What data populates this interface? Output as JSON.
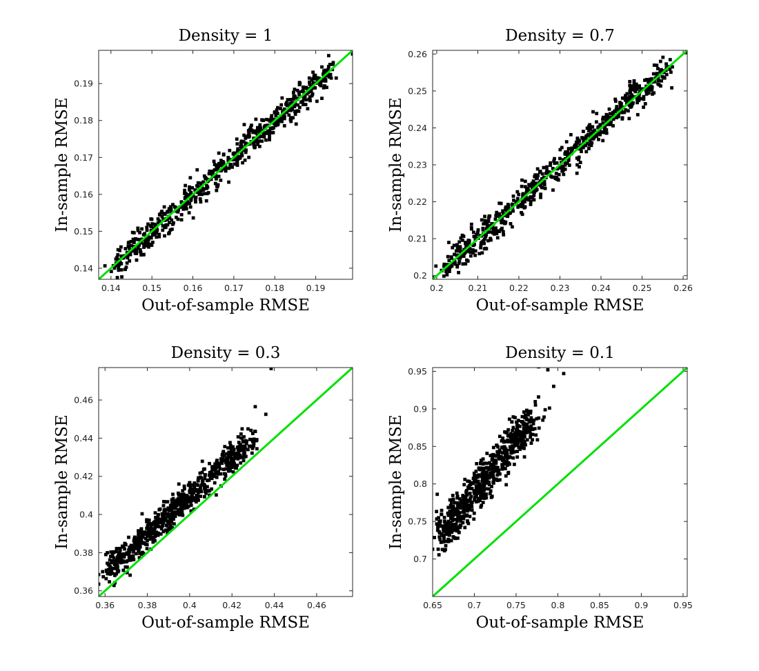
{
  "figure": {
    "identity_color": "#00e000",
    "point_color": "#000000"
  },
  "chart_data": [
    {
      "type": "scatter",
      "title": "Density = 1",
      "xlabel": "Out-of-sample RMSE",
      "ylabel": "In-sample RMSE",
      "xlim": [
        0.137,
        0.199
      ],
      "ylim": [
        0.137,
        0.199
      ],
      "xticks": [
        0.14,
        0.15,
        0.16,
        0.17,
        0.18,
        0.19
      ],
      "yticks": [
        0.14,
        0.15,
        0.16,
        0.17,
        0.18,
        0.19
      ],
      "tick_labels": [
        "0.14",
        "0.15",
        "0.16",
        "0.17",
        "0.18",
        "0.19"
      ],
      "reference_line": "y = x",
      "cloud": {
        "x_start": 0.138,
        "x_end": 0.196,
        "slope": 1.0,
        "offset": 0.0,
        "spread": 0.0018,
        "count": 650
      },
      "outliers": [
        [
          0.199,
          0.198
        ],
        [
          0.1915,
          0.1945
        ],
        [
          0.195,
          0.1915
        ],
        [
          0.1915,
          0.186
        ]
      ]
    },
    {
      "type": "scatter",
      "title": "Density = 0.7",
      "xlabel": "Out-of-sample RMSE",
      "ylabel": "In-sample RMSE",
      "xlim": [
        0.199,
        0.261
      ],
      "ylim": [
        0.199,
        0.261
      ],
      "xticks": [
        0.2,
        0.21,
        0.22,
        0.23,
        0.24,
        0.25,
        0.26
      ],
      "yticks": [
        0.2,
        0.21,
        0.22,
        0.23,
        0.24,
        0.25,
        0.26
      ],
      "tick_labels": [
        "0.2",
        "0.21",
        "0.22",
        "0.23",
        "0.24",
        "0.25",
        "0.26"
      ],
      "reference_line": "y = x",
      "cloud": {
        "x_start": 0.2,
        "x_end": 0.258,
        "slope": 1.0,
        "offset": 0.0,
        "spread": 0.0019,
        "count": 650
      },
      "outliers": [
        [
          0.261,
          0.2605
        ],
        [
          0.2545,
          0.258
        ],
        [
          0.2555,
          0.2535
        ]
      ]
    },
    {
      "type": "scatter",
      "title": "Density = 0.3",
      "xlabel": "Out-of-sample RMSE",
      "ylabel": "In-sample RMSE",
      "xlim": [
        0.357,
        0.477
      ],
      "ylim": [
        0.357,
        0.477
      ],
      "xticks": [
        0.36,
        0.38,
        0.4,
        0.42,
        0.44,
        0.46
      ],
      "yticks": [
        0.36,
        0.38,
        0.4,
        0.42,
        0.44,
        0.46
      ],
      "tick_labels": [
        "0.36",
        "0.38",
        "0.4",
        "0.42",
        "0.44",
        "0.46"
      ],
      "reference_line": "y = x",
      "cloud": {
        "x_start": 0.359,
        "x_end": 0.432,
        "slope": 1.0,
        "offset": 0.0095,
        "spread": 0.0035,
        "count": 700
      },
      "outliers": [
        [
          0.4385,
          0.4765
        ],
        [
          0.431,
          0.4565
        ],
        [
          0.436,
          0.4525
        ],
        [
          0.357,
          0.3635
        ],
        [
          0.357,
          0.3685
        ]
      ]
    },
    {
      "type": "scatter",
      "title": "Density = 0.1",
      "xlabel": "Out-of-sample RMSE",
      "ylabel": "In-sample RMSE",
      "xlim": [
        0.65,
        0.955
      ],
      "ylim": [
        0.65,
        0.955
      ],
      "xticks": [
        0.65,
        0.7,
        0.75,
        0.8,
        0.85,
        0.9,
        0.95
      ],
      "yticks": [
        0.7,
        0.75,
        0.8,
        0.85,
        0.9,
        0.95
      ],
      "tick_labels_x": [
        "0.65",
        "0.7",
        "0.75",
        "0.8",
        "0.85",
        "0.9",
        "0.95"
      ],
      "tick_labels_y": [
        "0.7",
        "0.75",
        "0.8",
        "0.85",
        "0.9",
        "0.95"
      ],
      "reference_line": "y = x",
      "cloud": {
        "x_start": 0.654,
        "x_end": 0.775,
        "slope": 1.4,
        "offset": 0.0,
        "base_x": 0.654,
        "base_y": 0.725,
        "spread": 0.012,
        "count": 700
      },
      "outliers": [
        [
          0.65,
          0.713
        ],
        [
          0.762,
          0.957
        ],
        [
          0.777,
          0.956
        ],
        [
          0.788,
          0.952
        ],
        [
          0.807,
          0.947
        ],
        [
          0.795,
          0.93
        ],
        [
          0.79,
          0.901
        ],
        [
          0.76,
          0.836
        ],
        [
          0.782,
          0.885
        ]
      ]
    }
  ]
}
